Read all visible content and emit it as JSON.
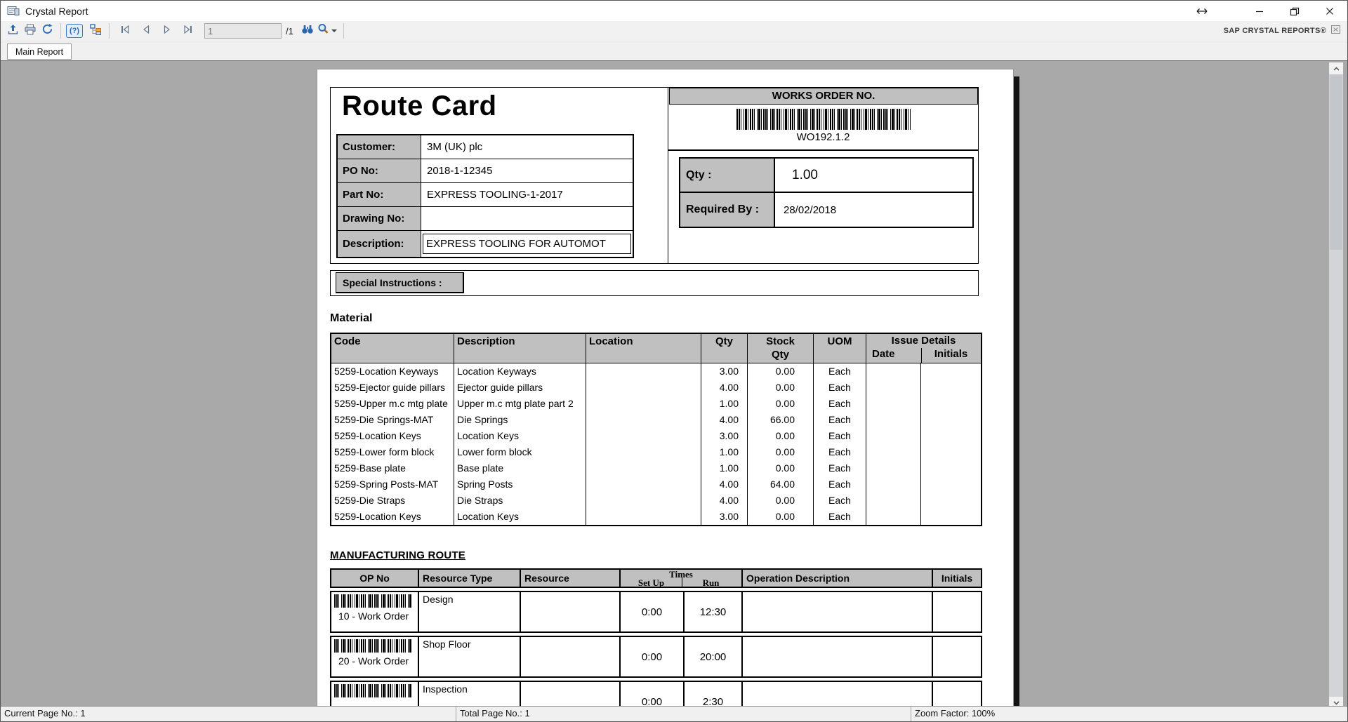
{
  "window": {
    "title": "Crystal Report",
    "brand": "SAP CRYSTAL REPORTS®"
  },
  "toolbar": {
    "page_input": "1",
    "page_total_label": "/1"
  },
  "tabs": [
    {
      "label": "Main Report"
    }
  ],
  "status_bar": {
    "current_page": "Current Page No.: 1",
    "total_page": "Total Page No.: 1",
    "zoom_factor": "Zoom Factor: 100%"
  },
  "icons": {
    "app": "crystal-reports-app-icon",
    "export": "export-icon",
    "print": "print-icon",
    "refresh": "refresh-icon",
    "parameters": "parameter-panel-toggle-icon",
    "group_tree": "group-tree-icon",
    "first": "first-page-icon",
    "previous": "previous-page-icon",
    "next": "next-page-icon",
    "last": "last-page-icon",
    "find": "binoculars-search-icon",
    "zoom": "magnifier-zoom-icon",
    "resize": "horizontal-resize-icon",
    "minimize": "minimize-icon",
    "maximize": "maximize-restore-icon",
    "close": "close-icon",
    "sap_logo": "sap-window-icon",
    "scroll_up": "chevron-up-icon",
    "scroll_down": "chevron-down-icon",
    "barcode": "barcode-image"
  },
  "colors": {
    "content_background": "#a9a9a9",
    "panel_gray": "#c0c0c0",
    "chrome_background": "#f1f1f1",
    "accent_blue": "#2f6bb3"
  },
  "report": {
    "title": "Route Card",
    "info_table": [
      {
        "label": "Customer:",
        "value": "3M (UK) plc"
      },
      {
        "label": "PO No:",
        "value": "2018-1-12345"
      },
      {
        "label": "Part No:",
        "value": "EXPRESS TOOLING-1-2017"
      },
      {
        "label": "Drawing No:",
        "value": ""
      },
      {
        "label": "Description:",
        "value": "EXPRESS TOOLING FOR AUTOMOT"
      }
    ],
    "works_order": {
      "header": "WORKS ORDER NO.",
      "number": "WO192.1.2",
      "qty_label": "Qty :",
      "qty_value": "1.00",
      "required_by_label": "Required By :",
      "required_by_value": "28/02/2018"
    },
    "special_instructions_label": "Special Instructions :",
    "material": {
      "heading": "Material",
      "headers": {
        "code": "Code",
        "description": "Description",
        "location": "Location",
        "qty": "Qty",
        "stock_line1": "Stock",
        "stock_line2": "Qty",
        "uom": "UOM",
        "issue_details": "Issue Details",
        "date": "Date",
        "initials": "Initials"
      },
      "rows": [
        {
          "code": "5259-Location Keyways",
          "description": "Location Keyways",
          "location": "",
          "qty": "3.00",
          "stock_qty": "0.00",
          "uom": "Each",
          "issue_date": "",
          "issue_initials": ""
        },
        {
          "code": "5259-Ejector guide pillars",
          "description": "Ejector guide pillars",
          "location": "",
          "qty": "4.00",
          "stock_qty": "0.00",
          "uom": "Each",
          "issue_date": "",
          "issue_initials": ""
        },
        {
          "code": "5259-Upper m.c mtg plate",
          "description": "Upper m.c mtg plate part 2",
          "location": "",
          "qty": "1.00",
          "stock_qty": "0.00",
          "uom": "Each",
          "issue_date": "",
          "issue_initials": ""
        },
        {
          "code": "5259-Die Springs-MAT",
          "description": "Die Springs",
          "location": "",
          "qty": "4.00",
          "stock_qty": "66.00",
          "uom": "Each",
          "issue_date": "",
          "issue_initials": ""
        },
        {
          "code": "5259-Location Keys",
          "description": "Location Keys",
          "location": "",
          "qty": "3.00",
          "stock_qty": "0.00",
          "uom": "Each",
          "issue_date": "",
          "issue_initials": ""
        },
        {
          "code": "5259-Lower form block",
          "description": "Lower form block",
          "location": "",
          "qty": "1.00",
          "stock_qty": "0.00",
          "uom": "Each",
          "issue_date": "",
          "issue_initials": ""
        },
        {
          "code": "5259-Base plate",
          "description": "Base plate",
          "location": "",
          "qty": "1.00",
          "stock_qty": "0.00",
          "uom": "Each",
          "issue_date": "",
          "issue_initials": ""
        },
        {
          "code": "5259-Spring Posts-MAT",
          "description": "Spring Posts",
          "location": "",
          "qty": "4.00",
          "stock_qty": "64.00",
          "uom": "Each",
          "issue_date": "",
          "issue_initials": ""
        },
        {
          "code": "5259-Die Straps",
          "description": "Die Straps",
          "location": "",
          "qty": "4.00",
          "stock_qty": "0.00",
          "uom": "Each",
          "issue_date": "",
          "issue_initials": ""
        },
        {
          "code": "5259-Location Keys",
          "description": "Location Keys",
          "location": "",
          "qty": "3.00",
          "stock_qty": "0.00",
          "uom": "Each",
          "issue_date": "",
          "issue_initials": ""
        }
      ]
    },
    "route": {
      "heading": "MANUFACTURING ROUTE",
      "headers": {
        "op_no": "OP No",
        "resource_type": "Resource Type",
        "resource": "Resource",
        "times": "Times",
        "set_up": "Set Up",
        "run": "Run",
        "operation_description": "Operation Description",
        "initials": "Initials"
      },
      "rows": [
        {
          "op_no": "10 - Work Order",
          "resource_type": "Design",
          "resource": "",
          "set_up": "0:00",
          "run": "12:30",
          "operation_description": "",
          "initials": ""
        },
        {
          "op_no": "20 - Work Order",
          "resource_type": "Shop Floor",
          "resource": "",
          "set_up": "0:00",
          "run": "20:00",
          "operation_description": "",
          "initials": ""
        },
        {
          "op_no": "",
          "resource_type": "Inspection",
          "resource": "",
          "set_up": "0:00",
          "run": "2:30",
          "operation_description": "",
          "initials": ""
        }
      ]
    }
  }
}
